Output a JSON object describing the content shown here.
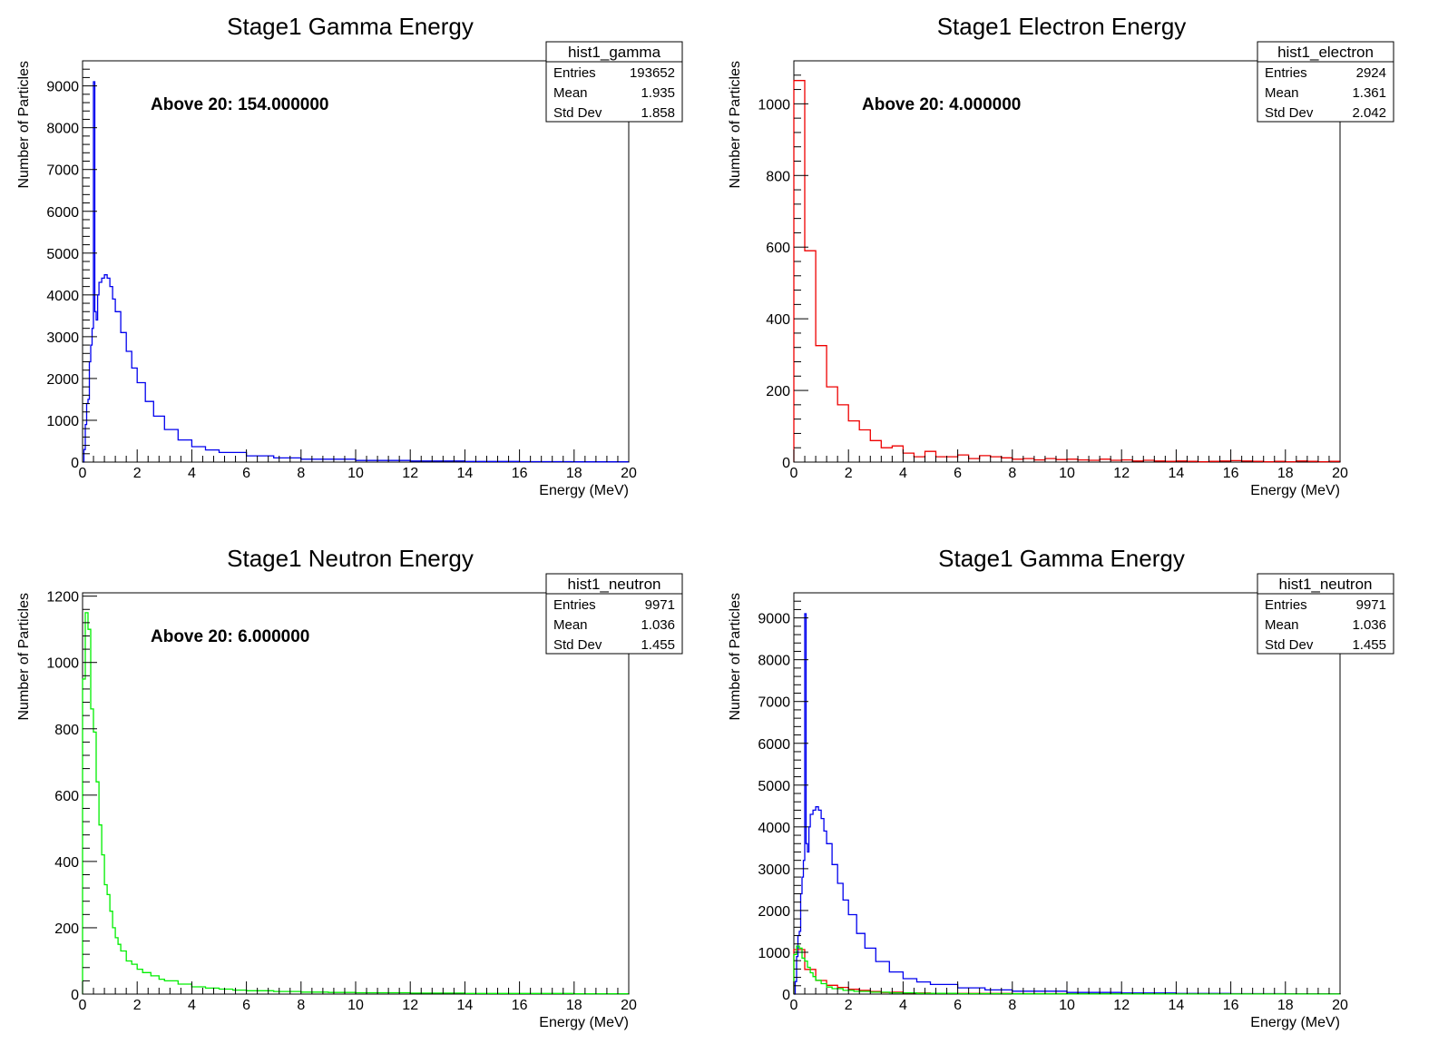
{
  "chart_data": [
    {
      "type": "line",
      "title": "Stage1 Gamma Energy",
      "xlabel": "Energy (MeV)",
      "ylabel": "Number of Particles",
      "xlim": [
        0,
        20
      ],
      "ylim": [
        0,
        9600
      ],
      "xticks": [
        0,
        2,
        4,
        6,
        8,
        10,
        12,
        14,
        16,
        18,
        20
      ],
      "yticks": [
        0,
        1000,
        2000,
        3000,
        4000,
        5000,
        6000,
        7000,
        8000,
        9000
      ],
      "annotation": "Above 20: 154.000000",
      "stats": {
        "name": "hist1_gamma",
        "rows": [
          [
            "Entries",
            "193652"
          ],
          [
            "Mean",
            "1.935"
          ],
          [
            "Std Dev",
            "1.858"
          ]
        ]
      },
      "series": [
        {
          "color": "#0000ee",
          "x": [
            0,
            0.05,
            0.1,
            0.15,
            0.2,
            0.25,
            0.3,
            0.35,
            0.4,
            0.45,
            0.5,
            0.55,
            0.6,
            0.7,
            0.8,
            0.9,
            1.0,
            1.1,
            1.2,
            1.4,
            1.6,
            1.8,
            2.0,
            2.3,
            2.6,
            3.0,
            3.5,
            4.0,
            4.5,
            5.0,
            6.0,
            7.0,
            8.0,
            10.0,
            12.0,
            14.0,
            16.0,
            18.0,
            20.0
          ],
          "y": [
            0,
            300,
            900,
            1400,
            1500,
            2400,
            2800,
            3200,
            9100,
            3600,
            3400,
            4000,
            4300,
            4400,
            4480,
            4400,
            4200,
            3900,
            3600,
            3100,
            2650,
            2250,
            1900,
            1450,
            1100,
            780,
            530,
            370,
            290,
            230,
            150,
            100,
            70,
            40,
            25,
            15,
            10,
            6,
            4
          ]
        }
      ]
    },
    {
      "type": "line",
      "title": "Stage1 Electron Energy",
      "xlabel": "Energy (MeV)",
      "ylabel": "Number of Particles",
      "xlim": [
        0,
        20
      ],
      "ylim": [
        0,
        1120
      ],
      "xticks": [
        0,
        2,
        4,
        6,
        8,
        10,
        12,
        14,
        16,
        18,
        20
      ],
      "yticks": [
        0,
        200,
        400,
        600,
        800,
        1000
      ],
      "annotation": "Above 20: 4.000000",
      "stats": {
        "name": "hist1_electron",
        "rows": [
          [
            "Entries",
            "2924"
          ],
          [
            "Mean",
            "1.361"
          ],
          [
            "Std Dev",
            "2.042"
          ]
        ]
      },
      "series": [
        {
          "color": "#ee0000",
          "x": [
            0,
            0.4,
            0.8,
            1.2,
            1.6,
            2.0,
            2.4,
            2.8,
            3.2,
            3.6,
            4.0,
            4.4,
            4.8,
            5.2,
            5.6,
            6.0,
            6.4,
            6.8,
            7.2,
            7.6,
            8.0,
            8.4,
            8.8,
            9.2,
            9.6,
            10.0,
            10.4,
            10.8,
            11.2,
            11.6,
            12.0,
            12.4,
            12.8,
            13.2,
            13.6,
            14.0,
            14.4,
            14.8,
            15.2,
            15.6,
            16.0,
            16.4,
            16.8,
            17.2,
            17.6,
            18.0,
            18.4,
            18.8,
            19.2,
            19.6,
            20.0
          ],
          "y": [
            1065,
            590,
            325,
            210,
            160,
            115,
            90,
            60,
            40,
            45,
            25,
            15,
            30,
            15,
            15,
            20,
            10,
            18,
            15,
            12,
            8,
            10,
            6,
            10,
            7,
            8,
            6,
            5,
            8,
            5,
            6,
            3,
            5,
            3,
            2,
            3,
            2,
            1,
            2,
            3,
            4,
            3,
            2,
            1,
            2,
            1,
            3,
            2,
            1,
            2,
            0
          ]
        }
      ]
    },
    {
      "type": "line",
      "title": "Stage1 Neutron Energy",
      "xlabel": "Energy (MeV)",
      "ylabel": "Number of Particles",
      "xlim": [
        0,
        20
      ],
      "ylim": [
        0,
        1210
      ],
      "xticks": [
        0,
        2,
        4,
        6,
        8,
        10,
        12,
        14,
        16,
        18,
        20
      ],
      "yticks": [
        0,
        200,
        400,
        600,
        800,
        1000,
        1200
      ],
      "annotation": "Above 20: 6.000000",
      "stats": {
        "name": "hist1_neutron",
        "rows": [
          [
            "Entries",
            "9971"
          ],
          [
            "Mean",
            "1.036"
          ],
          [
            "Std Dev",
            "1.455"
          ]
        ]
      },
      "series": [
        {
          "color": "#00ee00",
          "x": [
            0,
            0.1,
            0.2,
            0.3,
            0.4,
            0.5,
            0.6,
            0.7,
            0.8,
            0.9,
            1.0,
            1.1,
            1.2,
            1.3,
            1.4,
            1.6,
            1.8,
            2.0,
            2.2,
            2.5,
            2.8,
            3.0,
            3.5,
            4.0,
            4.5,
            5.0,
            5.5,
            6.0,
            7.0,
            8.0,
            9.0,
            10.0,
            12.0,
            14.0,
            16.0,
            18.0,
            20.0
          ],
          "y": [
            950,
            1150,
            1100,
            860,
            790,
            640,
            510,
            420,
            330,
            300,
            250,
            200,
            170,
            150,
            130,
            100,
            90,
            75,
            65,
            55,
            45,
            40,
            30,
            22,
            18,
            15,
            12,
            10,
            8,
            6,
            5,
            4,
            3,
            2,
            2,
            1,
            0
          ]
        }
      ]
    },
    {
      "type": "line",
      "title": "Stage1 Gamma Energy",
      "xlabel": "Energy (MeV)",
      "ylabel": "Number of Particles",
      "xlim": [
        0,
        20
      ],
      "ylim": [
        0,
        9600
      ],
      "xticks": [
        0,
        2,
        4,
        6,
        8,
        10,
        12,
        14,
        16,
        18,
        20
      ],
      "yticks": [
        0,
        1000,
        2000,
        3000,
        4000,
        5000,
        6000,
        7000,
        8000,
        9000
      ],
      "annotation": "",
      "stats": {
        "name": "hist1_neutron",
        "rows": [
          [
            "Entries",
            "9971"
          ],
          [
            "Mean",
            "1.036"
          ],
          [
            "Std Dev",
            "1.455"
          ]
        ]
      },
      "series": [
        {
          "color": "#0000ee",
          "x": [
            0,
            0.05,
            0.1,
            0.15,
            0.2,
            0.25,
            0.3,
            0.35,
            0.4,
            0.45,
            0.5,
            0.55,
            0.6,
            0.7,
            0.8,
            0.9,
            1.0,
            1.1,
            1.2,
            1.4,
            1.6,
            1.8,
            2.0,
            2.3,
            2.6,
            3.0,
            3.5,
            4.0,
            4.5,
            5.0,
            6.0,
            7.0,
            8.0,
            10.0,
            12.0,
            14.0,
            16.0,
            18.0,
            20.0
          ],
          "y": [
            0,
            300,
            900,
            1400,
            1500,
            2400,
            2800,
            3200,
            9100,
            3600,
            3400,
            4000,
            4300,
            4400,
            4480,
            4400,
            4200,
            3900,
            3600,
            3100,
            2650,
            2250,
            1900,
            1450,
            1100,
            780,
            530,
            370,
            290,
            230,
            150,
            100,
            70,
            40,
            25,
            15,
            10,
            6,
            4
          ]
        },
        {
          "color": "#ee0000",
          "x": [
            0,
            0.4,
            0.8,
            1.2,
            1.6,
            2.0,
            2.4,
            2.8,
            3.2,
            3.6,
            4.0,
            5.0,
            6.0,
            8.0,
            10.0,
            12.0,
            14.0,
            16.0,
            18.0,
            20.0
          ],
          "y": [
            1065,
            590,
            325,
            210,
            160,
            115,
            90,
            60,
            40,
            45,
            25,
            20,
            15,
            10,
            7,
            5,
            3,
            3,
            2,
            0
          ]
        },
        {
          "color": "#00ee00",
          "x": [
            0,
            0.1,
            0.2,
            0.3,
            0.4,
            0.5,
            0.6,
            0.7,
            0.8,
            1.0,
            1.2,
            1.4,
            1.8,
            2.2,
            2.8,
            3.5,
            4.5,
            6.0,
            8.0,
            10.0,
            14.0,
            20.0
          ],
          "y": [
            950,
            1150,
            1100,
            860,
            790,
            640,
            510,
            420,
            330,
            250,
            170,
            130,
            90,
            65,
            45,
            30,
            18,
            10,
            6,
            4,
            2,
            0
          ]
        }
      ]
    }
  ]
}
